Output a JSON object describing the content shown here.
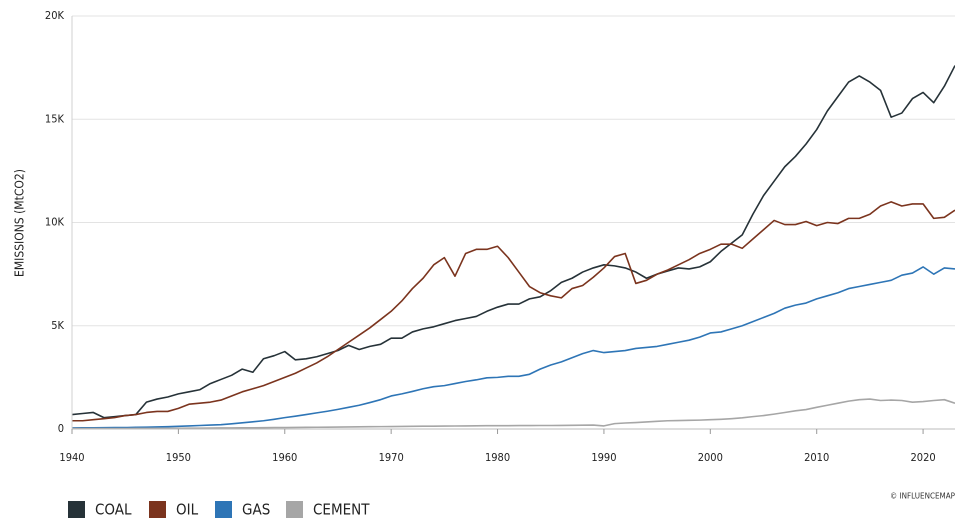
{
  "chart_data": {
    "type": "line",
    "y_label": "EMISSIONS (MtCO2)",
    "annotation": "© INFLUENCEMAP",
    "x": [
      1940,
      1941,
      1942,
      1943,
      1944,
      1945,
      1946,
      1947,
      1948,
      1949,
      1950,
      1951,
      1952,
      1953,
      1954,
      1955,
      1956,
      1957,
      1958,
      1959,
      1960,
      1961,
      1962,
      1963,
      1964,
      1965,
      1966,
      1967,
      1968,
      1969,
      1970,
      1971,
      1972,
      1973,
      1974,
      1975,
      1976,
      1977,
      1978,
      1979,
      1980,
      1981,
      1982,
      1983,
      1984,
      1985,
      1986,
      1987,
      1988,
      1989,
      1990,
      1991,
      1992,
      1993,
      1994,
      1995,
      1996,
      1997,
      1998,
      1999,
      2000,
      2001,
      2002,
      2003,
      2004,
      2005,
      2006,
      2007,
      2008,
      2009,
      2010,
      2011,
      2012,
      2013,
      2014,
      2015,
      2016,
      2017,
      2018,
      2019,
      2020,
      2021,
      2022,
      2023
    ],
    "series": [
      {
        "name": "COAL",
        "color": "#263238",
        "values": [
          700,
          750,
          800,
          550,
          600,
          650,
          700,
          1300,
          1450,
          1550,
          1700,
          1800,
          1900,
          2200,
          2400,
          2600,
          2900,
          2750,
          3400,
          3550,
          3750,
          3350,
          3400,
          3500,
          3650,
          3800,
          4050,
          3850,
          4000,
          4100,
          4400,
          4400,
          4700,
          4850,
          4950,
          5100,
          5250,
          5350,
          5450,
          5700,
          5900,
          6050,
          6050,
          6300,
          6400,
          6700,
          7100,
          7300,
          7600,
          7800,
          7950,
          7900,
          7800,
          7600,
          7300,
          7500,
          7650,
          7800,
          7750,
          7850,
          8100,
          8600,
          9000,
          9400,
          10400,
          11300,
          12000,
          12700,
          13200,
          13800,
          14500,
          15400,
          16100,
          16800,
          17100,
          16800,
          16400,
          15100,
          15300,
          16000,
          16300,
          15800,
          16600,
          17600
        ]
      },
      {
        "name": "OIL",
        "color": "#7b341e",
        "values": [
          400,
          400,
          450,
          500,
          550,
          650,
          700,
          800,
          850,
          850,
          1000,
          1200,
          1250,
          1300,
          1400,
          1600,
          1800,
          1950,
          2100,
          2300,
          2500,
          2700,
          2950,
          3200,
          3500,
          3850,
          4200,
          4550,
          4900,
          5300,
          5700,
          6200,
          6800,
          7300,
          7950,
          8300,
          7400,
          8500,
          8700,
          8700,
          8850,
          8300,
          7600,
          6900,
          6600,
          6450,
          6350,
          6800,
          6950,
          7350,
          7800,
          8350,
          8500,
          7050,
          7200,
          7500,
          7700,
          7950,
          8200,
          8500,
          8700,
          8950,
          8950,
          8750,
          9200,
          9650,
          10100,
          9900,
          9900,
          10050,
          9850,
          10000,
          9950,
          10200,
          10200,
          10400,
          10800,
          11000,
          10800,
          10900,
          10900,
          10200,
          10250,
          10600
        ]
      },
      {
        "name": "GAS",
        "color": "#2e75b6",
        "values": [
          50,
          55,
          60,
          65,
          70,
          70,
          80,
          90,
          100,
          110,
          130,
          150,
          170,
          190,
          210,
          250,
          300,
          350,
          400,
          470,
          550,
          620,
          700,
          780,
          860,
          950,
          1050,
          1150,
          1280,
          1420,
          1600,
          1700,
          1820,
          1950,
          2050,
          2100,
          2200,
          2300,
          2380,
          2480,
          2500,
          2550,
          2550,
          2650,
          2900,
          3100,
          3250,
          3450,
          3650,
          3800,
          3700,
          3750,
          3800,
          3900,
          3950,
          4000,
          4100,
          4200,
          4300,
          4450,
          4650,
          4700,
          4850,
          5000,
          5200,
          5400,
          5600,
          5850,
          6000,
          6100,
          6300,
          6450,
          6600,
          6800,
          6900,
          7000,
          7100,
          7200,
          7450,
          7550,
          7850,
          7500,
          7800,
          7750
        ]
      },
      {
        "name": "CEMENT",
        "color": "#a6a6a6",
        "values": [
          20,
          20,
          20,
          20,
          20,
          20,
          25,
          25,
          30,
          30,
          35,
          40,
          40,
          45,
          50,
          50,
          55,
          60,
          65,
          70,
          70,
          75,
          80,
          85,
          90,
          95,
          100,
          105,
          110,
          115,
          120,
          125,
          130,
          135,
          135,
          140,
          145,
          150,
          155,
          160,
          160,
          160,
          165,
          165,
          170,
          170,
          175,
          180,
          185,
          190,
          150,
          260,
          290,
          310,
          340,
          370,
          400,
          410,
          420,
          430,
          450,
          470,
          500,
          540,
          600,
          650,
          720,
          800,
          880,
          940,
          1050,
          1150,
          1250,
          1350,
          1420,
          1450,
          1380,
          1400,
          1380,
          1300,
          1330,
          1380,
          1420,
          1250
        ]
      }
    ],
    "xlim": [
      1940,
      2023
    ],
    "xticks": [
      1940,
      1950,
      1960,
      1970,
      1980,
      1990,
      2000,
      2010,
      2020
    ],
    "ylim": [
      0,
      20000
    ],
    "yticks": [
      0,
      {
        "value": 5000,
        "label": "5K"
      },
      {
        "value": 10000,
        "label": "10K"
      },
      {
        "value": 15000,
        "label": "15K"
      },
      {
        "value": 20000,
        "label": "20K"
      }
    ],
    "grid": true
  }
}
